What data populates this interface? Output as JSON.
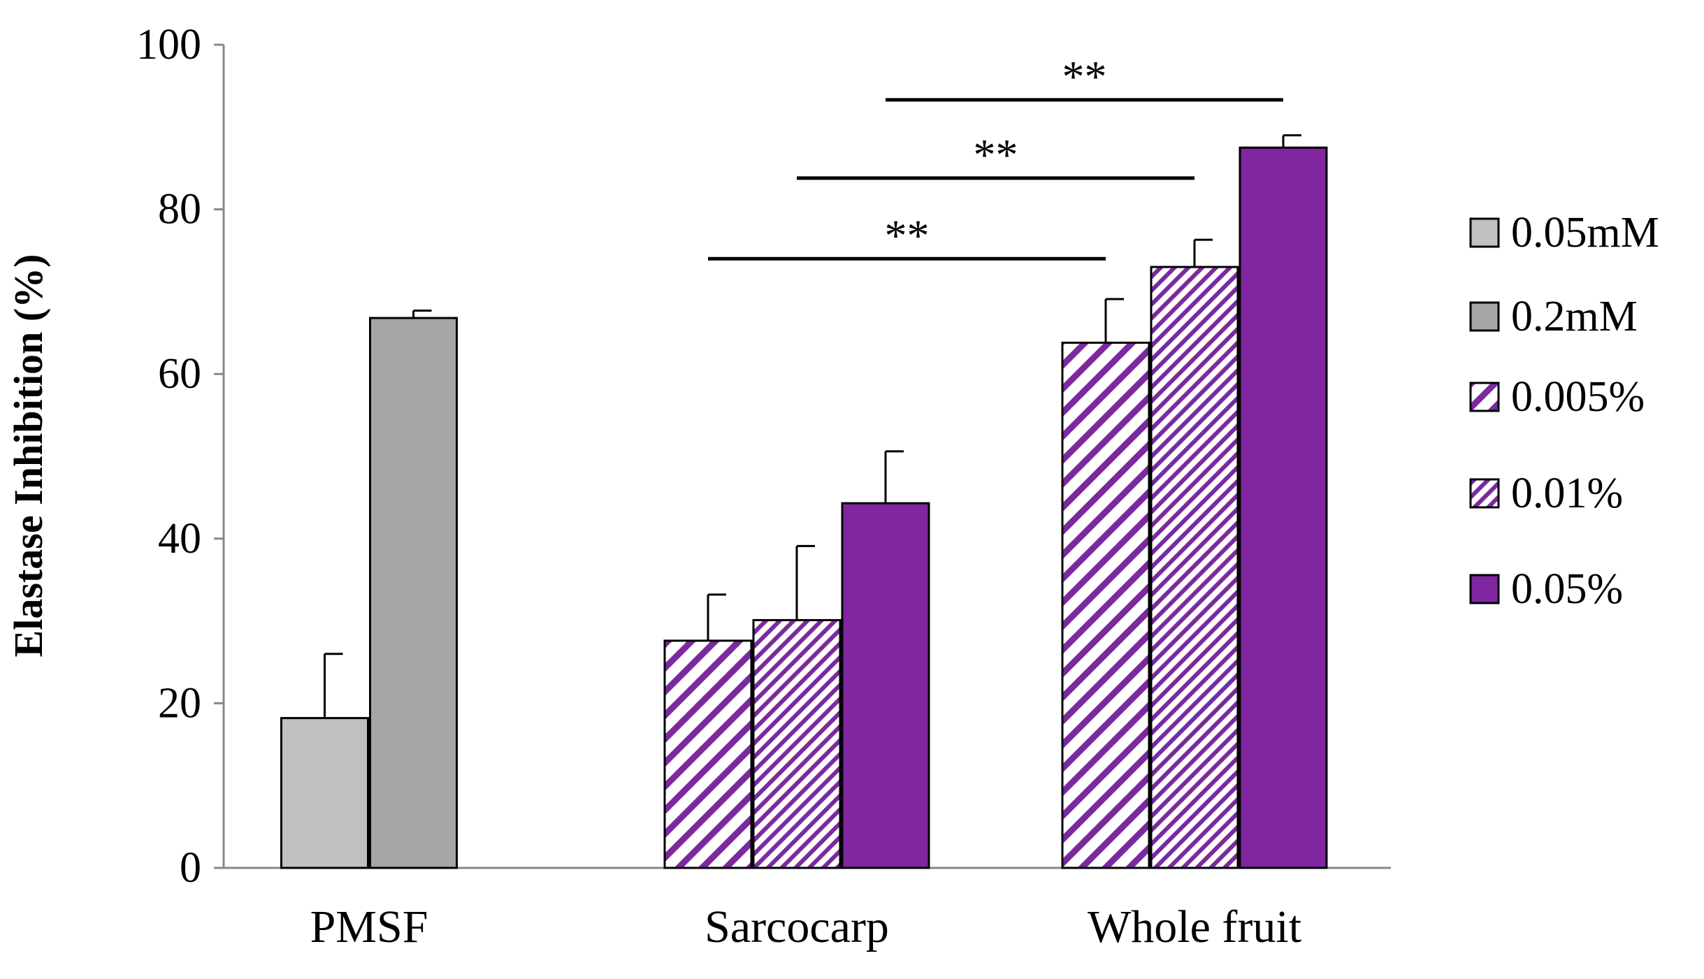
{
  "chart_data": {
    "type": "bar",
    "title": "",
    "xlabel": "",
    "ylabel": "Elastase Inhibition (%)",
    "ylim": [
      0,
      100
    ],
    "yticks": [
      0,
      20,
      40,
      60,
      80,
      100
    ],
    "ytick_labels": [
      "0",
      "20",
      "40",
      "60",
      "80",
      "100"
    ],
    "grid": false,
    "legend_position": "right",
    "categories": [
      "PMSF",
      "Sarcocarp",
      "Whole fruit"
    ],
    "series": [
      {
        "name": "0.05mM",
        "pattern": "solid",
        "color": "#c0c0c0",
        "values": [
          18.2,
          null,
          null
        ],
        "errors": [
          7.8,
          null,
          null
        ]
      },
      {
        "name": "0.2mM",
        "pattern": "solid",
        "color": "#a6a6a6",
        "values": [
          66.8,
          null,
          null
        ],
        "errors": [
          0.9,
          null,
          null
        ]
      },
      {
        "name": "0.005%",
        "pattern": "wide-hatch",
        "color": "#7a2a9e",
        "values": [
          null,
          27.6,
          63.8
        ],
        "errors": [
          null,
          5.6,
          5.3
        ]
      },
      {
        "name": "0.01%",
        "pattern": "narrow-hatch",
        "color": "#7a2a9e",
        "values": [
          null,
          30.1,
          73.0
        ],
        "errors": [
          null,
          9.0,
          3.3
        ]
      },
      {
        "name": "0.05%",
        "pattern": "solid",
        "color": "#7f26a0",
        "values": [
          null,
          44.3,
          87.5
        ],
        "errors": [
          null,
          6.3,
          1.5
        ]
      }
    ],
    "annotations": [
      {
        "text": "**",
        "from_category": "Sarcocarp",
        "from_series": "0.005%",
        "to_category": "Whole fruit",
        "to_series": "0.005%",
        "y": 74.0
      },
      {
        "text": "**",
        "from_category": "Sarcocarp",
        "from_series": "0.01%",
        "to_category": "Whole fruit",
        "to_series": "0.01%",
        "y": 83.8
      },
      {
        "text": "**",
        "from_category": "Sarcocarp",
        "from_series": "0.05%",
        "to_category": "Whole fruit",
        "to_series": "0.05%",
        "y": 93.3
      }
    ]
  }
}
